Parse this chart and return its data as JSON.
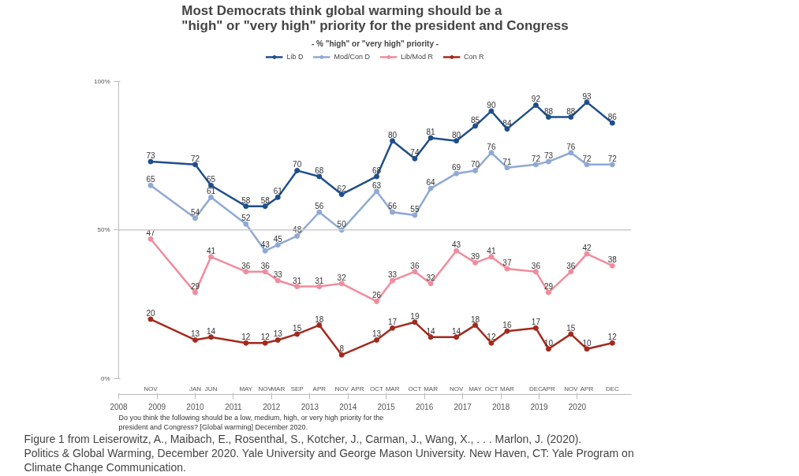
{
  "chart_data": {
    "type": "line",
    "title": "Most Democrats think global warming should be a\n\"high\" or \"very high\" priority for the president and Congress",
    "subtitle": "- % \"high\" or \"very high\" priority -",
    "x": [
      "2008-11",
      "2010-01",
      "2010-06",
      "2011-05",
      "2011-11",
      "2012-03",
      "2012-09",
      "2013-04",
      "2013-11",
      "2014-10",
      "2015-03",
      "2015-10",
      "2016-03",
      "2016-11",
      "2017-05",
      "2017-10",
      "2018-03",
      "2018-12",
      "2019-04",
      "2019-11",
      "2020-04",
      "2020-12"
    ],
    "series": [
      {
        "name": "Lib D",
        "color": "#1f4e8c",
        "values": [
          73,
          72,
          65,
          58,
          58,
          61,
          70,
          68,
          62,
          68,
          80,
          74,
          81,
          80,
          85,
          90,
          84,
          92,
          88,
          88,
          93,
          86
        ]
      },
      {
        "name": "Mod/Con D",
        "color": "#8fa9d4",
        "values": [
          65,
          54,
          61,
          52,
          43,
          45,
          48,
          56,
          50,
          63,
          56,
          55,
          64,
          69,
          70,
          76,
          71,
          72,
          73,
          76,
          72,
          72
        ]
      },
      {
        "name": "Lib/Mod R",
        "color": "#f08c9c",
        "values": [
          47,
          29,
          41,
          36,
          36,
          33,
          31,
          31,
          32,
          26,
          33,
          36,
          32,
          43,
          39,
          41,
          37,
          36,
          29,
          36,
          42,
          38
        ]
      },
      {
        "name": "Con R",
        "color": "#a32a1e",
        "values": [
          20,
          13,
          14,
          12,
          12,
          13,
          15,
          18,
          8,
          13,
          17,
          19,
          14,
          14,
          18,
          12,
          16,
          17,
          10,
          15,
          10,
          12
        ]
      }
    ],
    "xlim": [
      "2008-01",
      "2021-06"
    ],
    "xticks": [
      {
        "value": "2008-01",
        "label": "2008"
      },
      {
        "value": "2009-01",
        "label": "2009"
      },
      {
        "value": "2010-01",
        "label": "2010"
      },
      {
        "value": "2011-01",
        "label": "2011"
      },
      {
        "value": "2012-01",
        "label": "2012"
      },
      {
        "value": "2013-01",
        "label": "2013"
      },
      {
        "value": "2014-01",
        "label": "2014"
      },
      {
        "value": "2015-01",
        "label": "2015"
      },
      {
        "value": "2016-01",
        "label": "2016"
      },
      {
        "value": "2017-01",
        "label": "2017"
      },
      {
        "value": "2018-01",
        "label": "2018"
      },
      {
        "value": "2019-01",
        "label": "2019"
      },
      {
        "value": "2020-01",
        "label": "2020"
      }
    ],
    "ylim": [
      0,
      100
    ],
    "yticks": [
      {
        "value": 0,
        "label": "0%"
      },
      {
        "value": 50,
        "label": "50%"
      },
      {
        "value": 100,
        "label": "100%"
      }
    ],
    "ref_lines": [
      {
        "axis": "y",
        "value": 50,
        "color": "#cccccc"
      }
    ],
    "x2lim": [
      "2008-01",
      "2021-06"
    ],
    "x2ticks": [
      {
        "value": "2008-11",
        "label": "NOV"
      },
      {
        "value": "2010-01",
        "label": "JAN"
      },
      {
        "value": "2010-06",
        "label": "JUN"
      },
      {
        "value": "2011-05",
        "label": "MAY"
      },
      {
        "value": "2011-11",
        "label": "NOV"
      },
      {
        "value": "2012-03",
        "label": "MAR"
      },
      {
        "value": "2012-09",
        "label": "SEP"
      },
      {
        "value": "2013-04",
        "label": "APR"
      },
      {
        "value": "2013-11",
        "label": "NOV"
      },
      {
        "value": "2014-04",
        "label": "APR"
      },
      {
        "value": "2014-10",
        "label": "OCT"
      },
      {
        "value": "2015-03",
        "label": "MAR"
      },
      {
        "value": "2015-10",
        "label": "OCT"
      },
      {
        "value": "2016-03",
        "label": "MAR"
      },
      {
        "value": "2016-11",
        "label": "NOV"
      },
      {
        "value": "2017-05",
        "label": "MAY"
      },
      {
        "value": "2017-10",
        "label": "OCT"
      },
      {
        "value": "2018-03",
        "label": "MAR"
      },
      {
        "value": "2018-12",
        "label": "DEC"
      },
      {
        "value": "2019-04",
        "label": "APR"
      },
      {
        "value": "2019-11",
        "label": "NOV"
      },
      {
        "value": "2020-04",
        "label": "APR"
      },
      {
        "value": "2020-12",
        "label": "DEC"
      }
    ],
    "annotations": [
      "Do you think the following should be a low, medium, high, or very high priority for the president and Congress? [Global warming] December 2020.",
      "Figure 1 from Leiserowitz, A., Maibach, E., Rosenthal, S., Kotcher, J., Carman, J., Wang, X., . . . Marlon, J. (2020). Politics & Global Warming, December 2020. Yale University and George Mason University. New Haven, CT: Yale Program on Climate Change Communication."
    ],
    "data_labels": true,
    "marker": "circle",
    "legend": "top",
    "grid": false,
    "line_style": "solid"
  }
}
